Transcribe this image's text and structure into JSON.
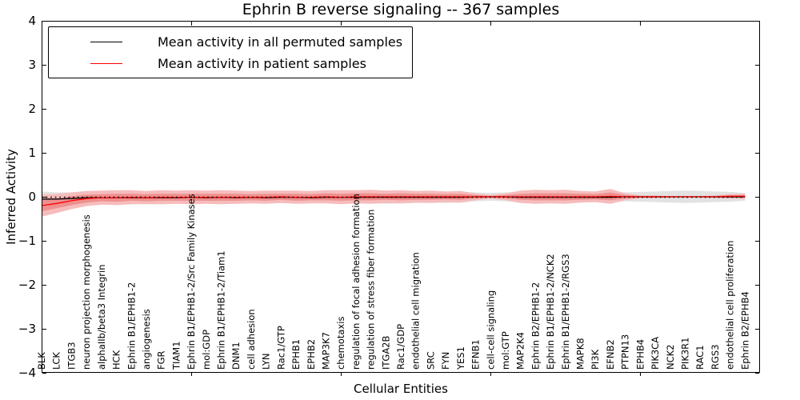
{
  "chart_data": {
    "type": "line",
    "title": "Ephrin B reverse signaling -- 367 samples",
    "xlabel": "Cellular Entities",
    "ylabel": "Inferred Activity",
    "ylim": [
      -4,
      4
    ],
    "yticks": [
      4,
      3,
      2,
      1,
      0,
      -1,
      -2,
      -3,
      -4
    ],
    "x_major_tick_indices": [
      10,
      20,
      30,
      40
    ],
    "grid": false,
    "legend_position": "upper left",
    "categories": [
      "BLK",
      "LCK",
      "ITGB3",
      "neuron projection morphogenesis",
      "alphaIIb/beta3 Integrin",
      "HCK",
      "Ephrin B1/EPHB1-2",
      "angiogenesis",
      "FGR",
      "TIAM1",
      "Ephrin B1/EPHB1-2/Src Family Kinases",
      "mol:GDP",
      "Ephrin B1/EPHB1-2/Tiam1",
      "DNM1",
      "cell adhesion",
      "LYN",
      "Rac1/GTP",
      "EPHB1",
      "EPHB2",
      "MAP3K7",
      "chemotaxis",
      "regulation of focal adhesion formation",
      "regulation of stress fiber formation",
      "ITGA2B",
      "Rac1/GDP",
      "endothelial cell migration",
      "SRC",
      "FYN",
      "YES1",
      "EFNB1",
      "cell-cell signaling",
      "mol:GTP",
      "MAP2K4",
      "Ephrin B2/EPHB1-2",
      "Ephrin B1/EPHB1-2/NCK2",
      "Ephrin B1/EPHB1-2/RGS3",
      "MAPK8",
      "PI3K",
      "EFNB2",
      "PTPN13",
      "EPHB4",
      "PIK3CA",
      "NCK2",
      "PIK3R1",
      "RAC1",
      "RGS3",
      "endothelial cell proliferation",
      "Ephrin B2/EPHB4"
    ],
    "zero_line": {
      "value": 0,
      "style": "dotted",
      "color": "#000000"
    },
    "series": [
      {
        "name": "Mean activity in all permuted samples",
        "color": "#000000",
        "line_style": "solid",
        "values": [
          -0.05,
          -0.05,
          -0.04,
          -0.02,
          -0.02,
          -0.02,
          -0.02,
          -0.02,
          -0.02,
          -0.02,
          -0.01,
          -0.02,
          -0.01,
          -0.02,
          -0.01,
          -0.02,
          -0.01,
          -0.01,
          -0.02,
          -0.01,
          -0.01,
          -0.01,
          -0.01,
          -0.01,
          -0.01,
          -0.01,
          -0.01,
          -0.01,
          -0.01,
          0.0,
          0.0,
          0.0,
          -0.01,
          -0.01,
          -0.01,
          -0.01,
          -0.01,
          -0.01,
          -0.01,
          0.0,
          0.0,
          0.0,
          0.0,
          0.0,
          0.0,
          0.0,
          0.0,
          0.0
        ],
        "band_half_width": [
          0.17,
          0.15,
          0.14,
          0.13,
          0.13,
          0.14,
          0.15,
          0.13,
          0.12,
          0.13,
          0.14,
          0.12,
          0.13,
          0.14,
          0.12,
          0.13,
          0.12,
          0.13,
          0.12,
          0.13,
          0.14,
          0.13,
          0.14,
          0.15,
          0.14,
          0.13,
          0.12,
          0.13,
          0.12,
          0.1,
          0.09,
          0.1,
          0.12,
          0.13,
          0.12,
          0.13,
          0.12,
          0.11,
          0.12,
          0.1,
          0.11,
          0.12,
          0.13,
          0.14,
          0.13,
          0.12,
          0.11,
          0.09
        ],
        "band_color": "#e2e2e2"
      },
      {
        "name": "Mean activity in patient samples",
        "color": "#ff0000",
        "line_style": "solid",
        "values": [
          -0.2,
          -0.15,
          -0.09,
          -0.04,
          -0.02,
          -0.02,
          -0.01,
          -0.02,
          -0.01,
          -0.01,
          -0.01,
          -0.01,
          -0.01,
          -0.01,
          -0.01,
          -0.01,
          0.0,
          -0.01,
          -0.01,
          0.0,
          -0.01,
          0.0,
          0.0,
          0.0,
          0.0,
          0.0,
          0.0,
          0.0,
          0.0,
          0.0,
          0.0,
          0.0,
          0.0,
          0.0,
          0.0,
          0.0,
          0.0,
          0.0,
          0.01,
          0.0,
          0.0,
          0.0,
          0.0,
          0.0,
          0.0,
          0.0,
          0.01,
          0.01
        ],
        "band_half_width": [
          0.25,
          0.22,
          0.19,
          0.17,
          0.16,
          0.17,
          0.16,
          0.15,
          0.16,
          0.15,
          0.16,
          0.15,
          0.16,
          0.15,
          0.14,
          0.15,
          0.14,
          0.15,
          0.14,
          0.15,
          0.16,
          0.15,
          0.16,
          0.14,
          0.15,
          0.13,
          0.14,
          0.12,
          0.13,
          0.08,
          0.04,
          0.08,
          0.14,
          0.16,
          0.15,
          0.16,
          0.13,
          0.12,
          0.17,
          0.08,
          0.03,
          0.03,
          0.02,
          0.02,
          0.02,
          0.03,
          0.05,
          0.06
        ],
        "band_inner_half_width": [
          0.13,
          0.11,
          0.1,
          0.09,
          0.08,
          0.09,
          0.08,
          0.08,
          0.08,
          0.08,
          0.08,
          0.08,
          0.08,
          0.08,
          0.07,
          0.08,
          0.07,
          0.08,
          0.07,
          0.08,
          0.08,
          0.08,
          0.08,
          0.07,
          0.08,
          0.07,
          0.07,
          0.06,
          0.07,
          0.04,
          0.02,
          0.04,
          0.07,
          0.08,
          0.08,
          0.08,
          0.07,
          0.06,
          0.09,
          0.04,
          0.02,
          0.02,
          0.01,
          0.01,
          0.01,
          0.02,
          0.03,
          0.03
        ],
        "band_color": "#f6bcbc",
        "band_inner_color": "#ee8f8f"
      }
    ]
  }
}
